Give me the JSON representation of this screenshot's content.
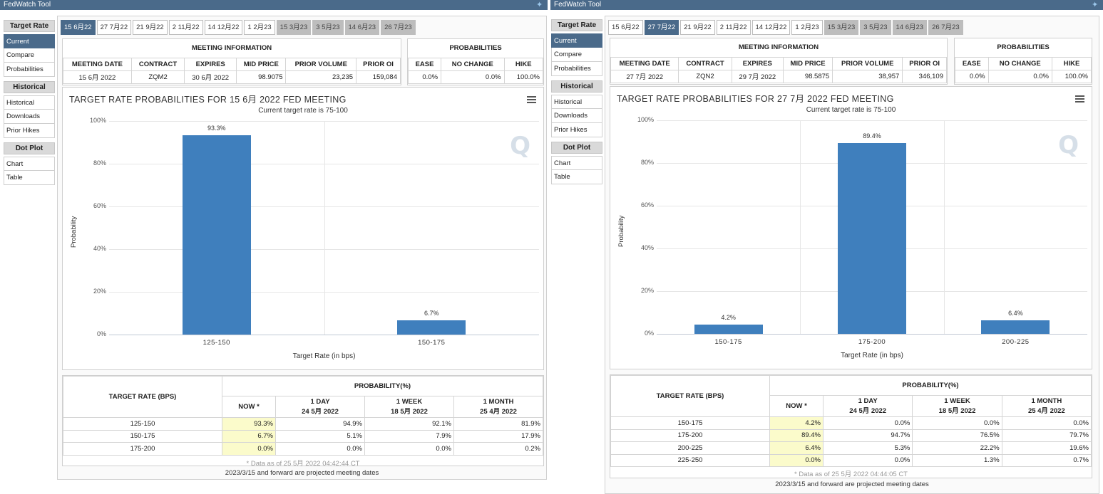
{
  "left": {
    "app_title": "FedWatch Tool",
    "sidebar": {
      "target_rate_header": "Target Rate",
      "target_items": [
        "Current",
        "Compare",
        "Probabilities"
      ],
      "historical_header": "Historical",
      "historical_items": [
        "Historical",
        "Downloads",
        "Prior Hikes"
      ],
      "dotplot_header": "Dot Plot",
      "dotplot_items": [
        "Chart",
        "Table"
      ]
    },
    "tabs": [
      "15 6月22",
      "27 7月22",
      "21 9月22",
      "2 11月22",
      "14 12月22",
      "1 2月23",
      "15 3月23",
      "3 5月23",
      "14 6月23",
      "26 7月23"
    ],
    "active_tab": 0,
    "meeting_info": {
      "header": "MEETING INFORMATION",
      "columns": [
        "MEETING DATE",
        "CONTRACT",
        "EXPIRES",
        "MID PRICE",
        "PRIOR VOLUME",
        "PRIOR OI"
      ],
      "values": [
        "15 6月 2022",
        "ZQM2",
        "30 6月 2022",
        "98.9075",
        "23,235",
        "159,084"
      ]
    },
    "probabilities": {
      "header": "PROBABILITIES",
      "columns": [
        "EASE",
        "NO CHANGE",
        "HIKE"
      ],
      "values": [
        "0.0%",
        "0.0%",
        "100.0%"
      ]
    },
    "chart_data": {
      "type": "bar",
      "title": "TARGET RATE PROBABILITIES FOR 15 6月 2022 FED MEETING",
      "subtitle": "Current target rate is 75-100",
      "categories": [
        "125-150",
        "150-175"
      ],
      "values": [
        93.3,
        6.7
      ],
      "value_labels": [
        "93.3%",
        "6.7%"
      ],
      "xlabel": "Target Rate (in bps)",
      "ylabel": "Probability",
      "ylim": [
        0,
        100
      ],
      "yticks": [
        "0%",
        "20%",
        "40%",
        "60%",
        "80%",
        "100%"
      ],
      "bar_color": "#3f7fbd"
    },
    "prob_table": {
      "rate_header": "TARGET RATE (BPS)",
      "prob_header": "PROBABILITY(%)",
      "now_header": "NOW *",
      "col_headers": [
        [
          "1 DAY",
          "24 5月 2022"
        ],
        [
          "1 WEEK",
          "18 5月 2022"
        ],
        [
          "1 MONTH",
          "25 4月 2022"
        ]
      ],
      "rows": [
        [
          "125-150",
          "93.3%",
          "94.9%",
          "92.1%",
          "81.9%"
        ],
        [
          "150-175",
          "6.7%",
          "5.1%",
          "7.9%",
          "17.9%"
        ],
        [
          "175-200",
          "0.0%",
          "0.0%",
          "0.0%",
          "0.2%"
        ]
      ],
      "footnote": "* Data as of 25 5月 2022 04:42:44 CT",
      "projected_note": "2023/3/15 and forward are projected meeting dates"
    }
  },
  "right": {
    "app_title": "FedWatch Tool",
    "sidebar": {
      "target_rate_header": "Target Rate",
      "target_items": [
        "Current",
        "Compare",
        "Probabilities"
      ],
      "historical_header": "Historical",
      "historical_items": [
        "Historical",
        "Downloads",
        "Prior Hikes"
      ],
      "dotplot_header": "Dot Plot",
      "dotplot_items": [
        "Chart",
        "Table"
      ]
    },
    "tabs": [
      "15 6月22",
      "27 7月22",
      "21 9月22",
      "2 11月22",
      "14 12月22",
      "1 2月23",
      "15 3月23",
      "3 5月23",
      "14 6月23",
      "26 7月23"
    ],
    "active_tab": 1,
    "meeting_info": {
      "header": "MEETING INFORMATION",
      "columns": [
        "MEETING DATE",
        "CONTRACT",
        "EXPIRES",
        "MID PRICE",
        "PRIOR VOLUME",
        "PRIOR OI"
      ],
      "values": [
        "27 7月 2022",
        "ZQN2",
        "29 7月 2022",
        "98.5875",
        "38,957",
        "346,109"
      ]
    },
    "probabilities": {
      "header": "PROBABILITIES",
      "columns": [
        "EASE",
        "NO CHANGE",
        "HIKE"
      ],
      "values": [
        "0.0%",
        "0.0%",
        "100.0%"
      ]
    },
    "chart_data": {
      "type": "bar",
      "title": "TARGET RATE PROBABILITIES FOR 27 7月 2022 FED MEETING",
      "subtitle": "Current target rate is 75-100",
      "categories": [
        "150-175",
        "175-200",
        "200-225"
      ],
      "values": [
        4.2,
        89.4,
        6.4
      ],
      "value_labels": [
        "4.2%",
        "89.4%",
        "6.4%"
      ],
      "xlabel": "Target Rate (in bps)",
      "ylabel": "Probability",
      "ylim": [
        0,
        100
      ],
      "yticks": [
        "0%",
        "20%",
        "40%",
        "60%",
        "80%",
        "100%"
      ],
      "bar_color": "#3f7fbd"
    },
    "prob_table": {
      "rate_header": "TARGET RATE (BPS)",
      "prob_header": "PROBABILITY(%)",
      "now_header": "NOW *",
      "col_headers": [
        [
          "1 DAY",
          "24 5月 2022"
        ],
        [
          "1 WEEK",
          "18 5月 2022"
        ],
        [
          "1 MONTH",
          "25 4月 2022"
        ]
      ],
      "rows": [
        [
          "150-175",
          "4.2%",
          "0.0%",
          "0.0%",
          "0.0%"
        ],
        [
          "175-200",
          "89.4%",
          "94.7%",
          "76.5%",
          "79.7%"
        ],
        [
          "200-225",
          "6.4%",
          "5.3%",
          "22.2%",
          "19.6%"
        ],
        [
          "225-250",
          "0.0%",
          "0.0%",
          "1.3%",
          "0.7%"
        ]
      ],
      "footnote": "* Data as of 25 5月 2022 04:44:05 CT",
      "projected_note": "2023/3/15 and forward are projected meeting dates"
    }
  }
}
